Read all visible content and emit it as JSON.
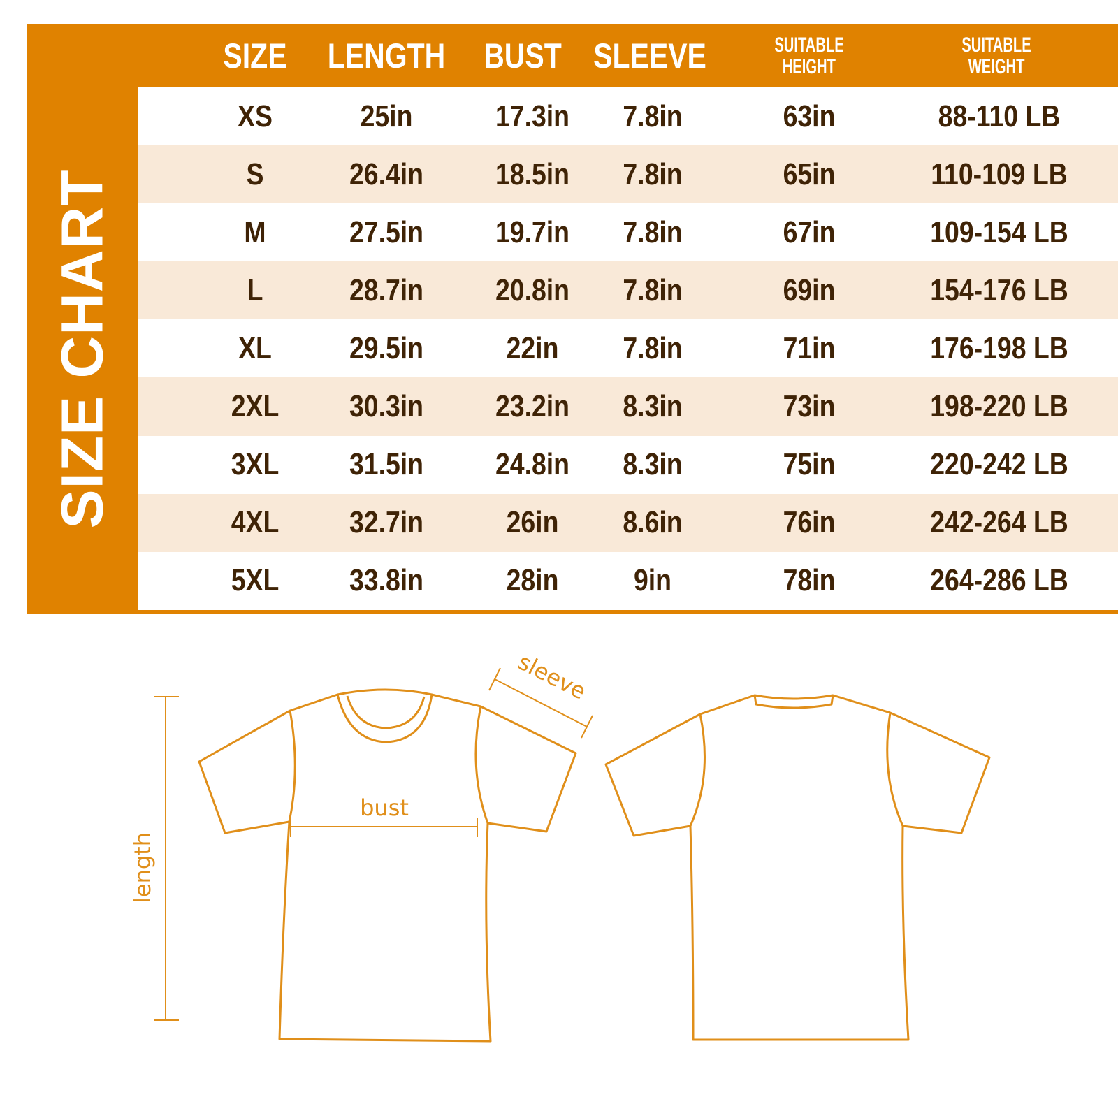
{
  "title": "SIZE CHART",
  "headers": [
    "SIZE",
    "LENGTH",
    "BUST",
    "SLEEVE",
    "SUITABLE HEIGHT",
    "SUITABLE WEIGHT"
  ],
  "headers_split": {
    "height": [
      "SUITABLE",
      "HEIGHT"
    ],
    "weight": [
      "SUITABLE",
      "WEIGHT"
    ]
  },
  "rows": [
    [
      "XS",
      "25in",
      "17.3in",
      "7.8in",
      "63in",
      "88-110 LB"
    ],
    [
      "S",
      "26.4in",
      "18.5in",
      "7.8in",
      "65in",
      "110-109 LB"
    ],
    [
      "M",
      "27.5in",
      "19.7in",
      "7.8in",
      "67in",
      "109-154 LB"
    ],
    [
      "L",
      "28.7in",
      "20.8in",
      "7.8in",
      "69in",
      "154-176 LB"
    ],
    [
      "XL",
      "29.5in",
      "22in",
      "7.8in",
      "71in",
      "176-198 LB"
    ],
    [
      "2XL",
      "30.3in",
      "23.2in",
      "8.3in",
      "73in",
      "198-220 LB"
    ],
    [
      "3XL",
      "31.5in",
      "24.8in",
      "8.3in",
      "75in",
      "220-242 LB"
    ],
    [
      "4XL",
      "32.7in",
      "26in",
      "8.6in",
      "76in",
      "242-264 LB"
    ],
    [
      "5XL",
      "33.8in",
      "28in",
      "9in",
      "78in",
      "264-286 LB"
    ]
  ],
  "diagram": {
    "sleeve": "sleeve",
    "bust": "bust",
    "length": "length"
  },
  "colors": {
    "accent": "#e08200",
    "row_alt": "#f9e9d8",
    "text": "#3f2306"
  }
}
